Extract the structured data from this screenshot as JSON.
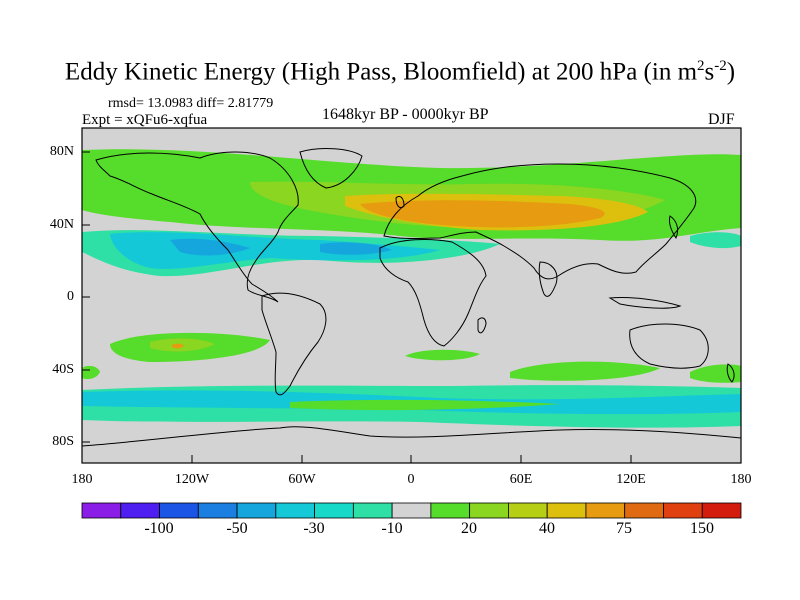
{
  "title": {
    "main": "Eddy Kinetic Energy (High Pass, Bloomfield) at 200 hPa (in m",
    "units_sup1": "2",
    "units_mid": "s",
    "units_sup2": "-2",
    "close": ")"
  },
  "stats": {
    "rmsd_line": "rmsd= 13.0983 diff= 2.81779",
    "expt_line": "Expt = xQFu6-xqfua",
    "period": "1648kyr BP - 0000kyr BP",
    "season": "DJF"
  },
  "map": {
    "y_ticks": [
      "80N",
      "40N",
      "0",
      "40S",
      "80S"
    ],
    "x_ticks": [
      "180",
      "120W",
      "60W",
      "0",
      "60E",
      "120E",
      "180"
    ],
    "ocean_color": "#d3d3d3"
  },
  "colorbar": {
    "colors": [
      "#8a1ee6",
      "#4e1ff0",
      "#1b55e6",
      "#1a7fe0",
      "#14a6dc",
      "#14c8d8",
      "#17d9c8",
      "#2ee0a5",
      "#d3d3d3",
      "#56dc2a",
      "#8ad620",
      "#b6cf14",
      "#ddc00e",
      "#e69b10",
      "#e06a12",
      "#e04010",
      "#d41c0e"
    ],
    "labels": [
      "-100",
      "-50",
      "-30",
      "-10",
      "20",
      "40",
      "75",
      "150"
    ]
  }
}
